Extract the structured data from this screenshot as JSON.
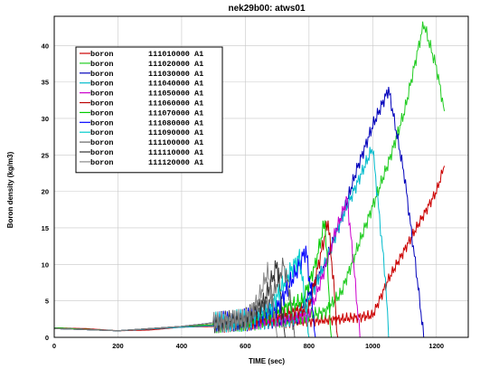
{
  "chart_data": {
    "type": "line",
    "title": "nek29b00: atws01",
    "xlabel": "TIME (sec)",
    "ylabel": "Boron density (kg/m3)",
    "xlim": [
      0,
      1300
    ],
    "ylim": [
      0,
      44
    ],
    "xticks": [
      0,
      200,
      400,
      600,
      800,
      1000,
      1200
    ],
    "yticks": [
      0,
      5,
      10,
      15,
      20,
      25,
      30,
      35,
      40
    ],
    "grid": true,
    "legend_position": "top-left",
    "series": [
      {
        "name": "boron",
        "id": "111010000 A1",
        "color": "#cc0000",
        "noise": 0.8,
        "points": [
          [
            0,
            1.3
          ],
          [
            100,
            1.2
          ],
          [
            200,
            0.9
          ],
          [
            300,
            1.0
          ],
          [
            400,
            1.4
          ],
          [
            520,
            1.5
          ],
          [
            600,
            1.8
          ],
          [
            700,
            2.0
          ],
          [
            800,
            2.2
          ],
          [
            900,
            2.5
          ],
          [
            1000,
            3.0
          ],
          [
            1050,
            8
          ],
          [
            1100,
            12
          ],
          [
            1150,
            16
          ],
          [
            1200,
            20
          ],
          [
            1225,
            23.5
          ]
        ]
      },
      {
        "name": "boron",
        "id": "111020000 A1",
        "color": "#22cc22",
        "noise": 1.0,
        "points": [
          [
            0,
            1.3
          ],
          [
            200,
            0.9
          ],
          [
            400,
            1.4
          ],
          [
            600,
            1.8
          ],
          [
            750,
            2.5
          ],
          [
            850,
            3.5
          ],
          [
            900,
            6
          ],
          [
            950,
            12
          ],
          [
            1000,
            18
          ],
          [
            1050,
            24
          ],
          [
            1100,
            31
          ],
          [
            1160,
            43
          ],
          [
            1200,
            37
          ],
          [
            1225,
            31
          ]
        ]
      },
      {
        "name": "boron",
        "id": "111030000 A1",
        "color": "#0000bb",
        "noise": 1.0,
        "points": [
          [
            0,
            1.3
          ],
          [
            200,
            0.9
          ],
          [
            400,
            1.4
          ],
          [
            600,
            1.8
          ],
          [
            760,
            2.5
          ],
          [
            800,
            6
          ],
          [
            850,
            10
          ],
          [
            900,
            16
          ],
          [
            950,
            23
          ],
          [
            1000,
            29
          ],
          [
            1050,
            34
          ],
          [
            1100,
            22
          ],
          [
            1140,
            8
          ],
          [
            1160,
            0
          ]
        ]
      },
      {
        "name": "boron",
        "id": "111040000 A1",
        "color": "#00bbcc",
        "noise": 1.0,
        "points": [
          [
            0,
            1.3
          ],
          [
            200,
            0.9
          ],
          [
            400,
            1.4
          ],
          [
            600,
            1.8
          ],
          [
            760,
            2.5
          ],
          [
            800,
            5
          ],
          [
            850,
            10
          ],
          [
            900,
            16
          ],
          [
            950,
            21
          ],
          [
            1000,
            26
          ],
          [
            1040,
            8
          ],
          [
            1050,
            0
          ]
        ]
      },
      {
        "name": "boron",
        "id": "111050000 A1",
        "color": "#cc00cc",
        "noise": 1.0,
        "points": [
          [
            0,
            1.3
          ],
          [
            200,
            0.9
          ],
          [
            400,
            1.5
          ],
          [
            600,
            1.9
          ],
          [
            800,
            3
          ],
          [
            840,
            8
          ],
          [
            880,
            14
          ],
          [
            920,
            19
          ],
          [
            940,
            10
          ],
          [
            960,
            0
          ]
        ]
      },
      {
        "name": "boron",
        "id": "111060000 A1",
        "color": "#bb0000",
        "noise": 1.2,
        "points": [
          [
            0,
            1.3
          ],
          [
            200,
            0.9
          ],
          [
            400,
            1.5
          ],
          [
            600,
            2
          ],
          [
            800,
            4
          ],
          [
            830,
            10
          ],
          [
            860,
            16
          ],
          [
            880,
            6
          ],
          [
            890,
            0
          ]
        ]
      },
      {
        "name": "boron",
        "id": "111070000 A1",
        "color": "#00cc00",
        "noise": 1.2,
        "points": [
          [
            0,
            1.3
          ],
          [
            200,
            0.9
          ],
          [
            400,
            1.5
          ],
          [
            600,
            2
          ],
          [
            780,
            5
          ],
          [
            820,
            10
          ],
          [
            850,
            16
          ],
          [
            860,
            8
          ],
          [
            870,
            0
          ]
        ]
      },
      {
        "name": "boron",
        "id": "111080000 A1",
        "color": "#0000ff",
        "noise": 1.5,
        "points": [
          [
            0,
            1.2
          ],
          [
            200,
            0.9
          ],
          [
            400,
            1.5
          ],
          [
            600,
            2.5
          ],
          [
            700,
            4
          ],
          [
            760,
            9
          ],
          [
            790,
            12
          ],
          [
            810,
            5
          ],
          [
            820,
            0
          ]
        ]
      },
      {
        "name": "boron",
        "id": "111090000 A1",
        "color": "#00cccc",
        "noise": 1.5,
        "points": [
          [
            0,
            1.2
          ],
          [
            200,
            0.9
          ],
          [
            400,
            1.5
          ],
          [
            600,
            2.5
          ],
          [
            680,
            4
          ],
          [
            740,
            9
          ],
          [
            770,
            11
          ],
          [
            790,
            4
          ],
          [
            800,
            0
          ]
        ]
      },
      {
        "name": "boron",
        "id": "111100000 A1",
        "color": "#666666",
        "noise": 1.5,
        "points": [
          [
            0,
            1.2
          ],
          [
            200,
            0.9
          ],
          [
            400,
            1.5
          ],
          [
            600,
            2.5
          ],
          [
            680,
            5
          ],
          [
            720,
            10
          ],
          [
            740,
            6
          ],
          [
            755,
            0
          ]
        ]
      },
      {
        "name": "boron",
        "id": "111110000 A1",
        "color": "#333333",
        "noise": 1.5,
        "points": [
          [
            0,
            1.2
          ],
          [
            200,
            0.9
          ],
          [
            400,
            1.5
          ],
          [
            600,
            2.5
          ],
          [
            660,
            5
          ],
          [
            700,
            10
          ],
          [
            715,
            4
          ],
          [
            725,
            0
          ]
        ]
      },
      {
        "name": "boron",
        "id": "111120000 A1",
        "color": "#888888",
        "noise": 1.5,
        "points": [
          [
            0,
            1.2
          ],
          [
            200,
            0.9
          ],
          [
            400,
            1.5
          ],
          [
            600,
            2.5
          ],
          [
            640,
            5
          ],
          [
            670,
            9
          ],
          [
            690,
            4
          ],
          [
            700,
            0
          ]
        ]
      }
    ]
  }
}
